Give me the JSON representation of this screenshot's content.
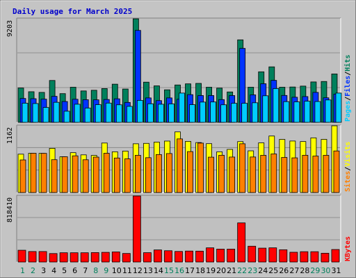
{
  "chart_data": {
    "type": "bar",
    "title": "Daily usage for March 2025",
    "categories": [
      "1",
      "2",
      "3",
      "4",
      "5",
      "6",
      "7",
      "8",
      "9",
      "10",
      "11",
      "12",
      "13",
      "14",
      "15",
      "16",
      "17",
      "18",
      "19",
      "20",
      "21",
      "22",
      "23",
      "24",
      "25",
      "26",
      "27",
      "28",
      "29",
      "30",
      "31"
    ],
    "weekend_days": [
      "1",
      "2",
      "8",
      "9",
      "15",
      "16",
      "22",
      "23",
      "29",
      "30"
    ],
    "panels": [
      {
        "id": "hits",
        "max_label": "9203",
        "ymax": 9203,
        "right_labels": [
          {
            "text": "Pages",
            "color": "#00ccff"
          },
          {
            "text": "/",
            "color": "#000000"
          },
          {
            "text": "Files",
            "color": "#0033ff"
          },
          {
            "text": "/",
            "color": "#000000"
          },
          {
            "text": "Hits",
            "color": "#00805c"
          }
        ],
        "series": [
          {
            "name": "Hits",
            "color": "#00805c",
            "values": [
              3050,
              2720,
              2660,
              3720,
              2550,
              3120,
              2790,
              2850,
              3000,
              3390,
              2960,
              9200,
              3570,
              3240,
              2890,
              3320,
              3420,
              3460,
              3120,
              3040,
              2700,
              7330,
              3120,
              4490,
              4930,
              3120,
              3140,
              3220,
              3590,
              3630,
              4300
            ]
          },
          {
            "name": "Files",
            "color": "#0033ff",
            "values": [
              2120,
              2100,
              2060,
              2310,
              1850,
              2050,
              2010,
              2000,
              2030,
              2090,
              1770,
              8170,
              2170,
              1930,
              2170,
              2050,
              2460,
              2380,
              2380,
              2020,
              2380,
              6570,
              2440,
              3430,
              3730,
              2390,
              2230,
              2290,
              2660,
              2180,
              2510
            ]
          },
          {
            "name": "Pages",
            "color": "#00ccff",
            "values": [
              1700,
              1670,
              1320,
              1780,
              990,
              1610,
              1270,
              1570,
              1710,
              1560,
              1420,
              1950,
              1650,
              1610,
              1640,
              2600,
              1570,
              1800,
              1810,
              1560,
              1690,
              1690,
              1740,
              2360,
              3000,
              1840,
              1820,
              1880,
              1850,
              1990,
              2600
            ]
          }
        ]
      },
      {
        "id": "visits",
        "max_label": "1162",
        "ymax": 1162,
        "right_labels": [
          {
            "text": "Sites",
            "color": "#ff8000"
          },
          {
            "text": "/",
            "color": "#000000"
          },
          {
            "text": "Visits",
            "color": "#ffff00"
          }
        ],
        "series": [
          {
            "name": "Visits",
            "color": "#ffff00",
            "values": [
              668,
              684,
              682,
              770,
              623,
              694,
              656,
              646,
              862,
              709,
              722,
              849,
              856,
              878,
              896,
              1056,
              891,
              870,
              851,
              709,
              751,
              887,
              726,
              865,
              984,
              925,
              897,
              888,
              952,
              926,
              1162
            ]
          },
          {
            "name": "Sites",
            "color": "#ff8000",
            "values": [
              568,
              684,
              682,
              572,
              623,
              639,
              571,
              617,
              684,
              601,
              586,
              648,
              607,
              661,
              679,
              934,
              713,
              861,
              616,
              649,
              618,
              849,
              619,
              648,
              672,
              611,
              604,
              649,
              635,
              648,
              724
            ]
          }
        ]
      },
      {
        "id": "kbytes",
        "max_label": "818410",
        "ymax": 818410,
        "right_labels": [
          {
            "text": "KBytes",
            "color": "#ff0000"
          }
        ],
        "series": [
          {
            "name": "KBytes",
            "color": "#ff0000",
            "values": [
              146000,
              130000,
              130000,
              105000,
              115000,
              115000,
              115000,
              117000,
              120000,
              125000,
              106000,
              818410,
              116000,
              150000,
              140000,
              131000,
              136000,
              135000,
              176000,
              160000,
              160000,
              485000,
              196000,
              172000,
              176000,
              152000,
              121000,
              128000,
              128000,
              109000,
              155000
            ]
          }
        ]
      }
    ]
  }
}
